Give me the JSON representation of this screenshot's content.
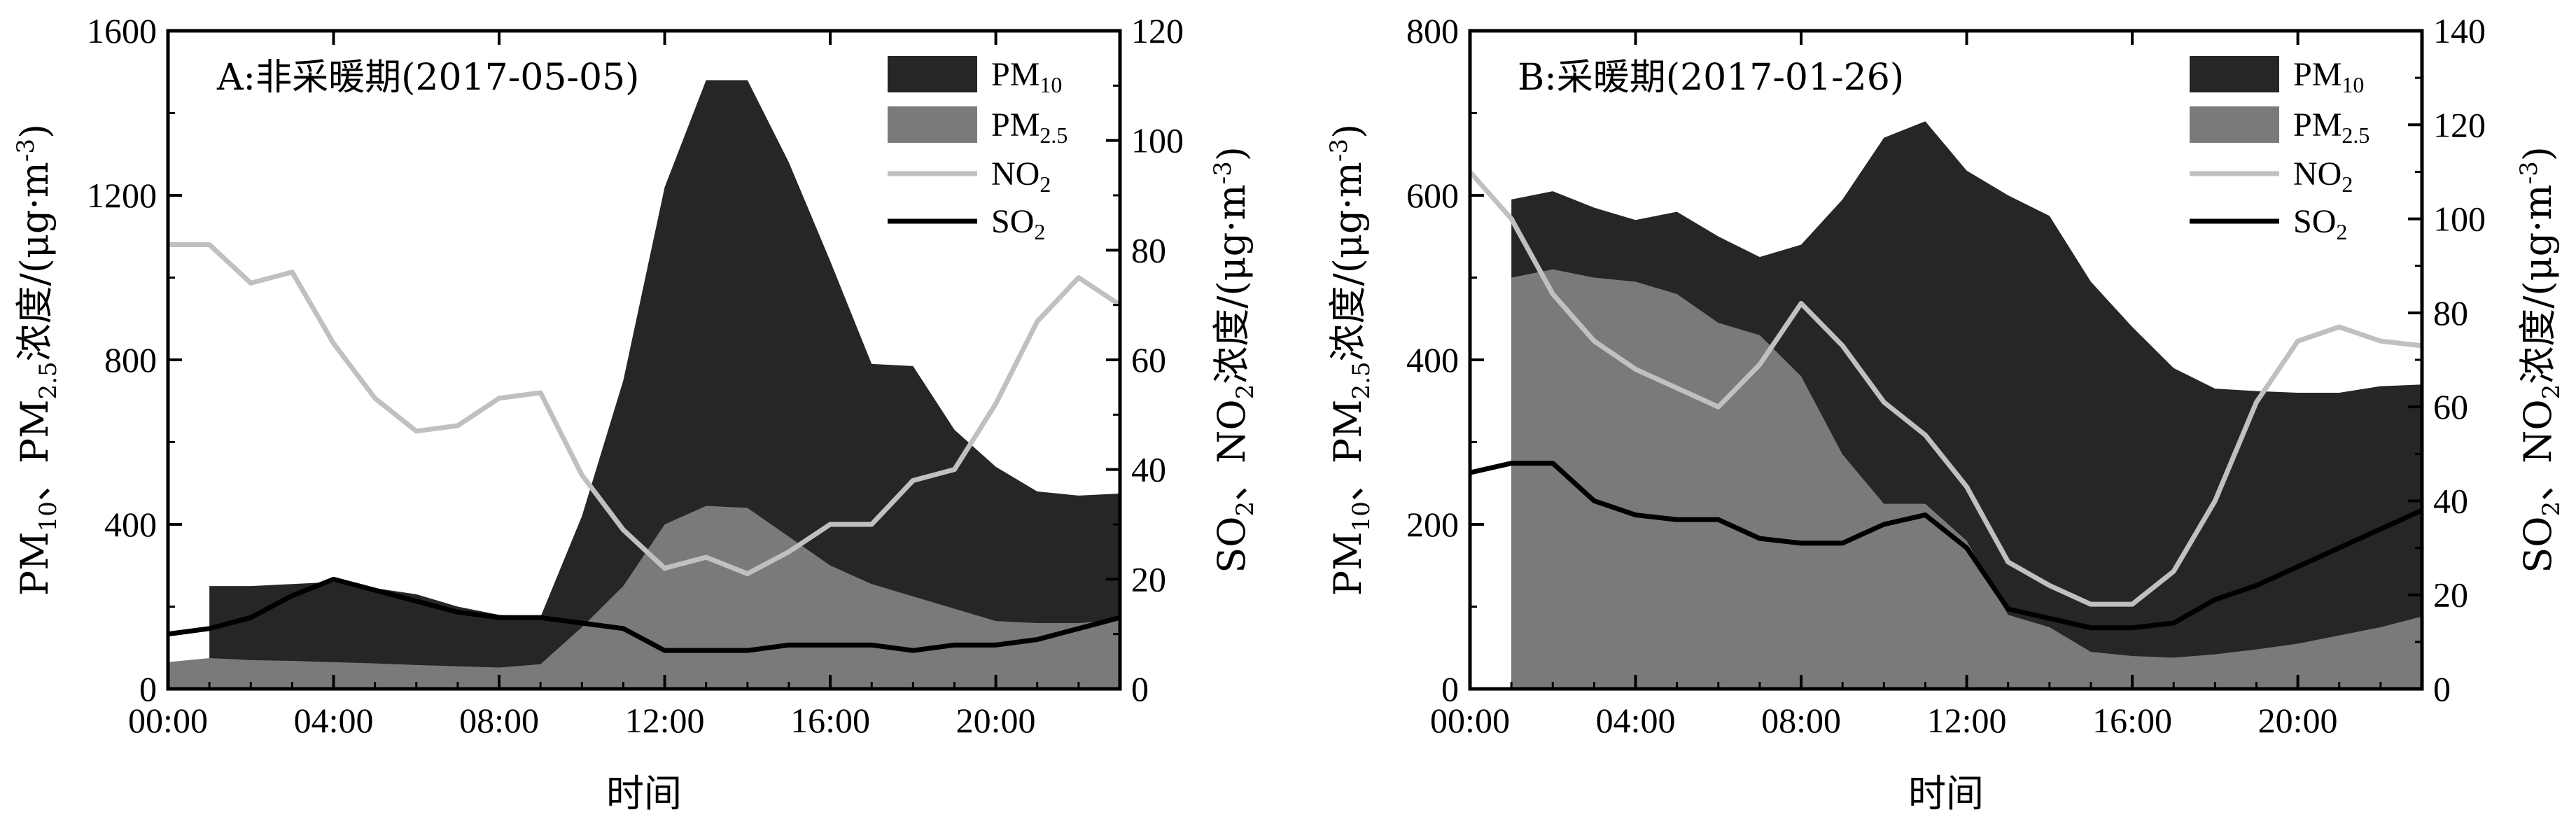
{
  "chart_data": [
    {
      "type": "area",
      "title": "A:非采暖期(2017-05-05)",
      "xlabel": "时间",
      "ylabel_left": "PM10、PM2.5浓度/(μg·m-3)",
      "ylabel_left_parts": {
        "pm10": "PM",
        "pm10_sub": "10",
        "sep": "、",
        "pm25": "PM",
        "pm25_sub": "2.5",
        "rest": "浓度/(μg·m",
        "sup": "-3",
        "close": ")"
      },
      "ylabel_right": "SO2、NO2浓度/(μg·m-3)",
      "ylabel_right_parts": {
        "so2": "SO",
        "so2_sub": "2",
        "sep": "、",
        "no2": "NO",
        "no2_sub": "2",
        "rest": "浓度/(μg·m",
        "sup": "-3",
        "close": ")"
      },
      "xlim": [
        0,
        23
      ],
      "x_ticks": [
        0,
        4,
        8,
        12,
        16,
        20
      ],
      "x_tick_labels": [
        "00:00",
        "04:00",
        "08:00",
        "12:00",
        "16:00",
        "20:00"
      ],
      "ylim_left": [
        0,
        1600
      ],
      "y_ticks_left": [
        0,
        400,
        800,
        1200,
        1600
      ],
      "ylim_right": [
        0,
        120
      ],
      "y_ticks_right": [
        0,
        20,
        40,
        60,
        80,
        100,
        120
      ],
      "legend": [
        {
          "name": "PM",
          "sub": "10",
          "kind": "fill",
          "color": "#262626"
        },
        {
          "name": "PM",
          "sub": "2.5",
          "kind": "fill",
          "color": "#7a7a7a"
        },
        {
          "name": "NO",
          "sub": "2",
          "kind": "line",
          "color": "#c0c0c0"
        },
        {
          "name": "SO",
          "sub": "2",
          "kind": "line",
          "color": "#000000"
        }
      ],
      "series": [
        {
          "key": "pm10",
          "name": "PM10",
          "axis": "left",
          "x": [
            1,
            2,
            3,
            4,
            5,
            6,
            7,
            8,
            9,
            10,
            11,
            12,
            13,
            14,
            15,
            16,
            17,
            18,
            19,
            20,
            21,
            22,
            23
          ],
          "values": [
            250,
            250,
            255,
            260,
            245,
            230,
            200,
            180,
            175,
            420,
            750,
            1220,
            1480,
            1480,
            1280,
            1040,
            790,
            785,
            630,
            540,
            480,
            470,
            475
          ]
        },
        {
          "key": "pm25",
          "name": "PM2.5",
          "axis": "left",
          "x": [
            0,
            1,
            2,
            3,
            4,
            5,
            6,
            7,
            8,
            9,
            10,
            11,
            12,
            13,
            14,
            15,
            16,
            17,
            18,
            19,
            20,
            21,
            22,
            23
          ],
          "values": [
            65,
            75,
            70,
            68,
            65,
            62,
            58,
            55,
            52,
            60,
            150,
            250,
            400,
            445,
            440,
            370,
            300,
            255,
            225,
            195,
            165,
            160,
            160,
            168
          ]
        },
        {
          "key": "no2",
          "name": "NO2",
          "axis": "right",
          "x": [
            0,
            1,
            2,
            3,
            4,
            5,
            6,
            7,
            8,
            9,
            10,
            11,
            12,
            13,
            14,
            15,
            16,
            17,
            18,
            19,
            20,
            21,
            22,
            23
          ],
          "values": [
            81,
            81,
            74,
            76,
            63,
            53,
            47,
            48,
            53,
            54,
            39,
            29,
            22,
            24,
            21,
            25,
            30,
            30,
            38,
            40,
            52,
            67,
            75,
            70
          ]
        },
        {
          "key": "so2",
          "name": "SO2",
          "axis": "right",
          "x": [
            0,
            1,
            2,
            3,
            4,
            5,
            6,
            7,
            8,
            9,
            10,
            11,
            12,
            13,
            14,
            15,
            16,
            17,
            18,
            19,
            20,
            21,
            22,
            23
          ],
          "values": [
            10,
            11,
            13,
            17,
            20,
            18,
            16,
            14,
            13,
            13,
            12,
            11,
            7,
            7,
            7,
            8,
            8,
            8,
            7,
            8,
            8,
            9,
            11,
            13
          ]
        }
      ]
    },
    {
      "type": "area",
      "title": "B:采暖期(2017-01-26)",
      "xlabel": "时间",
      "ylabel_left": "PM10、PM2.5浓度/(μg·m-3)",
      "ylabel_left_parts": {
        "pm10": "PM",
        "pm10_sub": "10",
        "sep": "、",
        "pm25": "PM",
        "pm25_sub": "2.5",
        "rest": "浓度/(μg·m",
        "sup": "-3",
        "close": ")"
      },
      "ylabel_right": "SO2、NO2浓度/(μg·m-3)",
      "ylabel_right_parts": {
        "so2": "SO",
        "so2_sub": "2",
        "sep": "、",
        "no2": "NO",
        "no2_sub": "2",
        "rest": "浓度/(μg·m",
        "sup": "-3",
        "close": ")"
      },
      "xlim": [
        0,
        23
      ],
      "x_ticks": [
        0,
        4,
        8,
        12,
        16,
        20
      ],
      "x_tick_labels": [
        "00:00",
        "04:00",
        "08:00",
        "12:00",
        "16:00",
        "20:00"
      ],
      "ylim_left": [
        0,
        800
      ],
      "y_ticks_left": [
        0,
        200,
        400,
        600,
        800
      ],
      "ylim_right": [
        0,
        140
      ],
      "y_ticks_right": [
        0,
        20,
        40,
        60,
        80,
        100,
        120,
        140
      ],
      "legend": [
        {
          "name": "PM",
          "sub": "10",
          "kind": "fill",
          "color": "#262626"
        },
        {
          "name": "PM",
          "sub": "2.5",
          "kind": "fill",
          "color": "#7a7a7a"
        },
        {
          "name": "NO",
          "sub": "2",
          "kind": "line",
          "color": "#c0c0c0"
        },
        {
          "name": "SO",
          "sub": "2",
          "kind": "line",
          "color": "#000000"
        }
      ],
      "series": [
        {
          "key": "pm10",
          "name": "PM10",
          "axis": "left",
          "x": [
            1,
            2,
            3,
            4,
            5,
            6,
            7,
            8,
            9,
            10,
            11,
            12,
            13,
            14,
            15,
            16,
            17,
            18,
            19,
            20,
            21,
            22,
            23
          ],
          "values": [
            595,
            605,
            585,
            570,
            580,
            550,
            525,
            540,
            595,
            670,
            690,
            630,
            600,
            575,
            495,
            440,
            390,
            365,
            362,
            360,
            360,
            368,
            370
          ]
        },
        {
          "key": "pm25",
          "name": "PM2.5",
          "axis": "left",
          "x": [
            1,
            2,
            3,
            4,
            5,
            6,
            7,
            8,
            9,
            10,
            11,
            12,
            13,
            14,
            15,
            16,
            17,
            18,
            19,
            20,
            21,
            22,
            23
          ],
          "values": [
            500,
            510,
            500,
            495,
            480,
            445,
            430,
            380,
            285,
            225,
            225,
            180,
            90,
            75,
            45,
            40,
            38,
            42,
            48,
            55,
            65,
            75,
            88
          ]
        },
        {
          "key": "no2",
          "name": "NO2",
          "axis": "right",
          "x": [
            0,
            1,
            2,
            3,
            4,
            5,
            6,
            7,
            8,
            9,
            10,
            11,
            12,
            13,
            14,
            15,
            16,
            17,
            18,
            19,
            20,
            21,
            22,
            23
          ],
          "values": [
            110,
            100,
            84,
            74,
            68,
            64,
            60,
            69,
            82,
            73,
            61,
            54,
            43,
            27,
            22,
            18,
            18,
            25,
            40,
            61,
            74,
            77,
            74,
            73
          ]
        },
        {
          "key": "so2",
          "name": "SO2",
          "axis": "right",
          "x": [
            0,
            1,
            2,
            3,
            4,
            5,
            6,
            7,
            8,
            9,
            10,
            11,
            12,
            13,
            14,
            15,
            16,
            17,
            18,
            19,
            20,
            21,
            22,
            23
          ],
          "values": [
            46,
            48,
            48,
            40,
            37,
            36,
            36,
            32,
            31,
            31,
            35,
            37,
            30,
            17,
            15,
            13,
            13,
            14,
            19,
            22,
            26,
            30,
            34,
            38
          ]
        }
      ]
    }
  ]
}
